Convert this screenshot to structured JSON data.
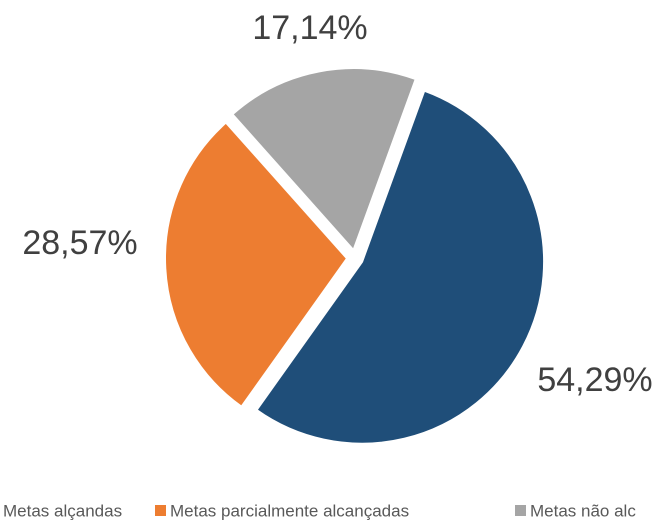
{
  "chart_data": {
    "type": "pie",
    "categories": [
      "Metas alçandas",
      "Metas parcialmente alcançadas",
      "Metas não alc"
    ],
    "values": [
      54.29,
      28.57,
      17.14
    ],
    "value_labels": [
      "54,29%",
      "28,57%",
      "17,14%"
    ],
    "colors": [
      "#1f4e79",
      "#ed7d31",
      "#a5a5a5"
    ],
    "legend": "bottom"
  }
}
